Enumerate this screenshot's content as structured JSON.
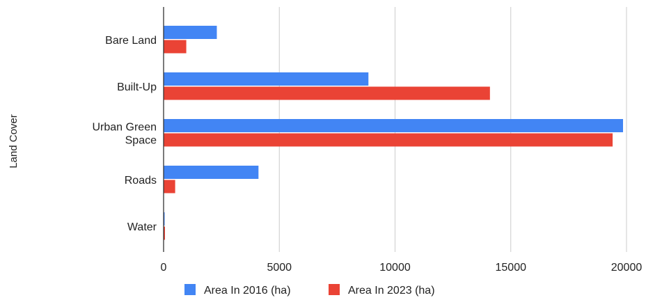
{
  "chart_data": {
    "type": "bar",
    "orientation": "horizontal",
    "categories": [
      "Bare Land",
      "Built-Up",
      "Urban Green Space",
      "Roads",
      "Water"
    ],
    "category_label_lines": [
      [
        "Bare Land"
      ],
      [
        "Built-Up"
      ],
      [
        "Urban Green",
        "Space"
      ],
      [
        "Roads"
      ],
      [
        "Water"
      ]
    ],
    "series": [
      {
        "name": "Area In 2016 (ha)",
        "color": "#4285f4",
        "values": [
          2300,
          8850,
          19850,
          4100,
          30
        ]
      },
      {
        "name": "Area In 2023 (ha)",
        "color": "#ea4335",
        "values": [
          980,
          14100,
          19400,
          500,
          60
        ]
      }
    ],
    "xlabel": "",
    "ylabel": "Land Cover",
    "xlim": [
      0,
      20000
    ],
    "xticks": [
      "0",
      "5000",
      "10000",
      "15000",
      "20000"
    ],
    "grid": "vertical",
    "legend_position": "bottom"
  }
}
